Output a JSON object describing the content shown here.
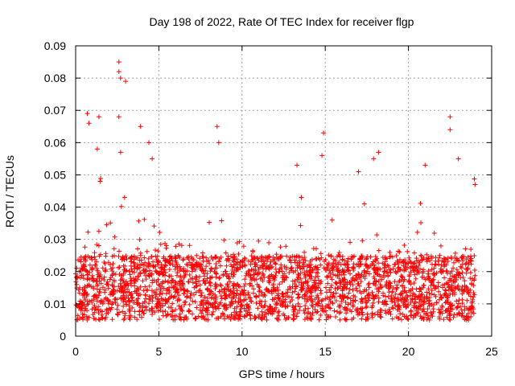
{
  "chart_data": {
    "type": "scatter",
    "title": "Day 198 of 2022, Rate Of TEC Index for receiver flgp",
    "xlabel": "GPS time / hours",
    "ylabel": "ROTI / TECUs",
    "xlim": [
      0,
      25
    ],
    "ylim": [
      0,
      0.09
    ],
    "x_ticks": [
      0,
      5,
      10,
      15,
      20,
      25
    ],
    "x_tick_labels": [
      "0",
      "5",
      "10",
      "15",
      "20",
      "25"
    ],
    "y_ticks": [
      0,
      0.01,
      0.02,
      0.03,
      0.04,
      0.05,
      0.06,
      0.07,
      0.08,
      0.09
    ],
    "y_tick_labels": [
      "0",
      "0.01",
      "0.02",
      "0.03",
      "0.04",
      "0.05",
      "0.06",
      "0.07",
      "0.08",
      "0.09"
    ],
    "grid": true,
    "marker": "+",
    "marker_color": "#ff0000",
    "series": [
      {
        "name": "ROTI",
        "x_range": [
          0,
          24
        ],
        "baseline_band": [
          0.005,
          0.025
        ],
        "notable_points": [
          {
            "x": 0.7,
            "y": 0.069
          },
          {
            "x": 0.8,
            "y": 0.066
          },
          {
            "x": 1.4,
            "y": 0.068
          },
          {
            "x": 1.3,
            "y": 0.058
          },
          {
            "x": 2.6,
            "y": 0.085
          },
          {
            "x": 2.6,
            "y": 0.082
          },
          {
            "x": 2.7,
            "y": 0.08
          },
          {
            "x": 3.0,
            "y": 0.079
          },
          {
            "x": 2.6,
            "y": 0.068
          },
          {
            "x": 2.7,
            "y": 0.057
          },
          {
            "x": 3.9,
            "y": 0.065
          },
          {
            "x": 4.4,
            "y": 0.06
          },
          {
            "x": 4.6,
            "y": 0.055
          },
          {
            "x": 8.5,
            "y": 0.065
          },
          {
            "x": 8.6,
            "y": 0.06
          },
          {
            "x": 13.3,
            "y": 0.053
          },
          {
            "x": 14.9,
            "y": 0.063
          },
          {
            "x": 14.8,
            "y": 0.056
          },
          {
            "x": 17.0,
            "y": 0.051
          },
          {
            "x": 17.9,
            "y": 0.055
          },
          {
            "x": 18.2,
            "y": 0.057
          },
          {
            "x": 21.0,
            "y": 0.053
          },
          {
            "x": 22.5,
            "y": 0.068
          },
          {
            "x": 22.5,
            "y": 0.064
          },
          {
            "x": 23.0,
            "y": 0.055
          },
          {
            "x": 24.0,
            "y": 0.047
          }
        ]
      }
    ]
  }
}
